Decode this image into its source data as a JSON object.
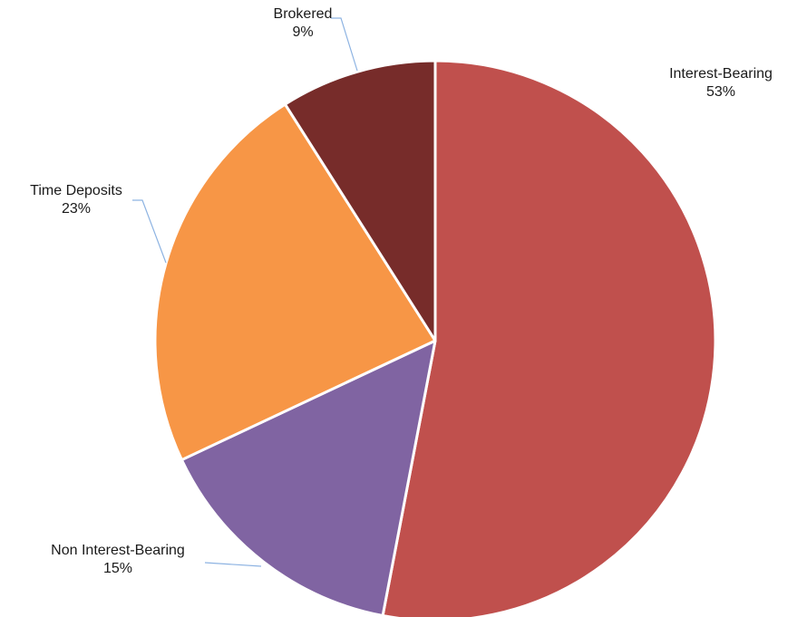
{
  "chart_data": {
    "type": "pie",
    "title": "",
    "start_angle_deg": 0,
    "direction": "clockwise",
    "slices": [
      {
        "label": "Interest-Bearing",
        "value": 53,
        "display": "53%",
        "color": "#c0504d"
      },
      {
        "label": "Non Interest-Bearing",
        "value": 15,
        "display": "15%",
        "color": "#8064a2"
      },
      {
        "label": "Time Deposits",
        "value": 23,
        "display": "23%",
        "color": "#f79646"
      },
      {
        "label": "Brokered",
        "value": 9,
        "display": "9%",
        "color": "#772c2a"
      }
    ],
    "legend": "none",
    "leader_line_color": "#8db3e2"
  }
}
